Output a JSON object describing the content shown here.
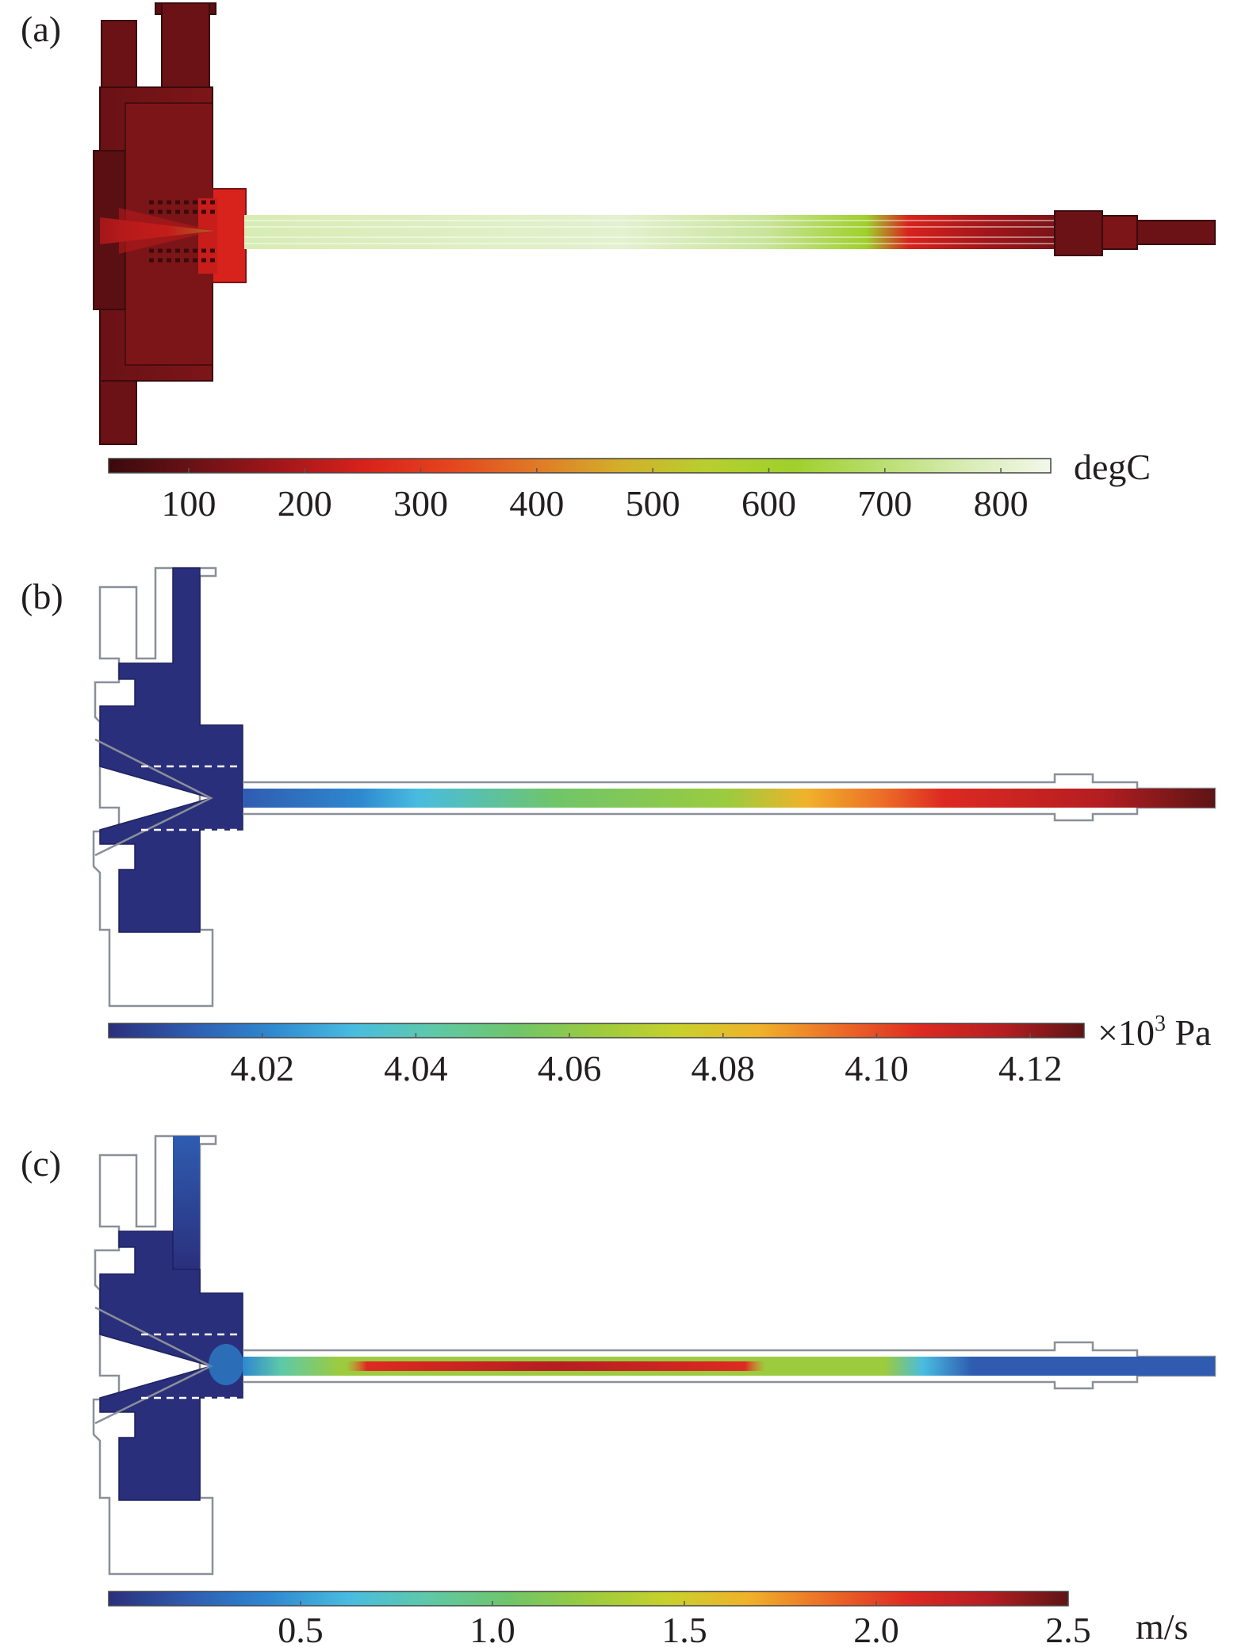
{
  "panels": [
    {
      "label": "(a)",
      "field": "temperature",
      "unit": "degC",
      "ticks": [
        "100",
        "200",
        "300",
        "400",
        "500",
        "600",
        "700",
        "800"
      ],
      "tick_values": [
        100,
        200,
        300,
        400,
        500,
        600,
        700,
        800
      ],
      "range": [
        31,
        843
      ],
      "colormap": [
        "#3a0a0c",
        "#6a1216",
        "#a3161a",
        "#d8221c",
        "#e4451f",
        "#e07a26",
        "#d3b02a",
        "#b7cf2e",
        "#9fd02b",
        "#b8de6e",
        "#d8ecb4",
        "#f3f7ea"
      ]
    },
    {
      "label": "(b)",
      "field": "pressure",
      "unit_prefix": "×10",
      "unit_exp": "3",
      "unit_suffix": " Pa",
      "ticks": [
        "4.02",
        "4.04",
        "4.06",
        "4.08",
        "4.10",
        "4.12"
      ],
      "tick_values": [
        4.02,
        4.04,
        4.06,
        4.08,
        4.1,
        4.12
      ],
      "range": [
        4.0,
        4.127
      ],
      "colormap": [
        "#2a2f7c",
        "#2f5cb0",
        "#2e88d0",
        "#48bce0",
        "#5ec9a8",
        "#6fc56a",
        "#9ccb3e",
        "#c8d12c",
        "#f0b22a",
        "#ec6b27",
        "#dd2a22",
        "#b51e22",
        "#5e1415"
      ]
    },
    {
      "label": "(c)",
      "field": "velocity",
      "unit": "m/s",
      "ticks": [
        "0.5",
        "1.0",
        "1.5",
        "2.0",
        "2.5"
      ],
      "tick_values": [
        0.5,
        1.0,
        1.5,
        2.0,
        2.5
      ],
      "range": [
        0.0,
        2.5
      ],
      "colormap": [
        "#2a2f7c",
        "#2f5cb0",
        "#2e88d0",
        "#48bce0",
        "#5ec9a8",
        "#6fc56a",
        "#9ccb3e",
        "#c8d12c",
        "#f0b22a",
        "#ec6b27",
        "#dd2a22",
        "#b51e22",
        "#5e1415"
      ]
    }
  ]
}
